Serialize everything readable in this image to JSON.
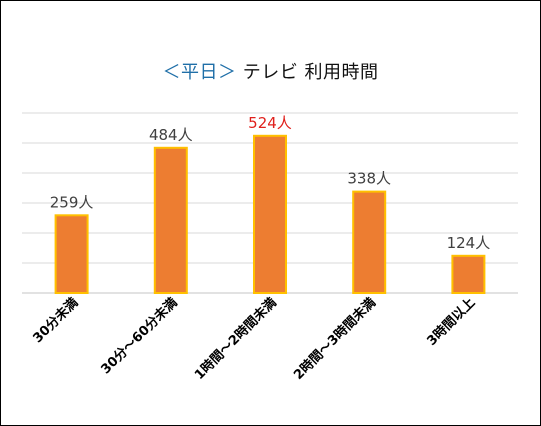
{
  "chart_data": {
    "type": "bar",
    "title_bracket": "＜平日＞",
    "title_main": "テレビ 利用時間",
    "categories": [
      "30分未満",
      "30分～60分未満",
      "1時間～2時間未満",
      "2時間～3時間未満",
      "3時間以上"
    ],
    "values": [
      259,
      484,
      524,
      338,
      124
    ],
    "data_labels": [
      "259人",
      "484人",
      "524人",
      "338人",
      "124人"
    ],
    "highlight_index": 2,
    "ylim": [
      0,
      600
    ],
    "grid": true,
    "legend": "none",
    "colors": {
      "bar_fill": "#ed7d31",
      "bar_stroke": "#ffc000",
      "label": "#404040",
      "highlight_label": "#e0201c",
      "grid": "#d9d9d9",
      "title_accent": "#1f6fa8"
    }
  }
}
